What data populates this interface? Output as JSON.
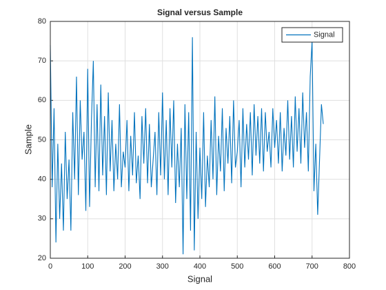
{
  "chart_data": {
    "type": "line",
    "title": "Signal versus Sample",
    "xlabel": "Signal",
    "ylabel": "Sample",
    "x": [
      0,
      5,
      10,
      15,
      20,
      25,
      30,
      35,
      40,
      45,
      50,
      55,
      60,
      65,
      70,
      75,
      80,
      85,
      90,
      95,
      100,
      105,
      110,
      115,
      120,
      125,
      130,
      135,
      140,
      145,
      150,
      155,
      160,
      165,
      170,
      175,
      180,
      185,
      190,
      195,
      200,
      205,
      210,
      215,
      220,
      225,
      230,
      235,
      240,
      245,
      250,
      255,
      260,
      265,
      270,
      275,
      280,
      285,
      290,
      295,
      300,
      305,
      310,
      315,
      320,
      325,
      330,
      335,
      340,
      345,
      350,
      355,
      360,
      365,
      370,
      375,
      380,
      385,
      390,
      395,
      400,
      405,
      410,
      415,
      420,
      425,
      430,
      435,
      440,
      445,
      450,
      455,
      460,
      465,
      470,
      475,
      480,
      485,
      490,
      495,
      500,
      505,
      510,
      515,
      520,
      525,
      530,
      535,
      540,
      545,
      550,
      555,
      560,
      565,
      570,
      575,
      580,
      585,
      590,
      595,
      600,
      605,
      610,
      615,
      620,
      625,
      630,
      635,
      640,
      645,
      650,
      655,
      660,
      665,
      670,
      675,
      680,
      685,
      690,
      695,
      700,
      705,
      710,
      715,
      720,
      725,
      730
    ],
    "series": [
      {
        "name": "Signal",
        "color": "#0072bd",
        "values": [
          74,
          38,
          58,
          24,
          49,
          30,
          44,
          27,
          52,
          35,
          45,
          27,
          57,
          40,
          66,
          36,
          60,
          45,
          52,
          32,
          68,
          33,
          55,
          70,
          38,
          59,
          37,
          64,
          41,
          56,
          36,
          62,
          42,
          55,
          37,
          49,
          40,
          59,
          38,
          47,
          43,
          55,
          37,
          51,
          41,
          57,
          39,
          46,
          35,
          56,
          44,
          58,
          39,
          54,
          38,
          45,
          52,
          36,
          57,
          41,
          62,
          40,
          55,
          36,
          58,
          43,
          60,
          34,
          49,
          38,
          53,
          21,
          59,
          35,
          57,
          27,
          76,
          22,
          52,
          30,
          48,
          35,
          57,
          33,
          46,
          38,
          55,
          40,
          61,
          36,
          51,
          42,
          58,
          37,
          53,
          44,
          56,
          39,
          60,
          43,
          47,
          55,
          38,
          58,
          43,
          54,
          45,
          57,
          41,
          59,
          46,
          56,
          44,
          58,
          42,
          57,
          47,
          52,
          43,
          58,
          48,
          55,
          44,
          57,
          42,
          53,
          46,
          60,
          45,
          56,
          43,
          61,
          47,
          58,
          44,
          62,
          48,
          57,
          42,
          66,
          75,
          37,
          49,
          31,
          45,
          59,
          54
        ]
      }
    ],
    "xlim": [
      0,
      800
    ],
    "xticks": [
      0,
      100,
      200,
      300,
      400,
      500,
      600,
      700,
      800
    ],
    "ylim": [
      20,
      80
    ],
    "yticks": [
      20,
      30,
      40,
      50,
      60,
      70,
      80
    ],
    "grid": true,
    "legend": "top-right"
  }
}
